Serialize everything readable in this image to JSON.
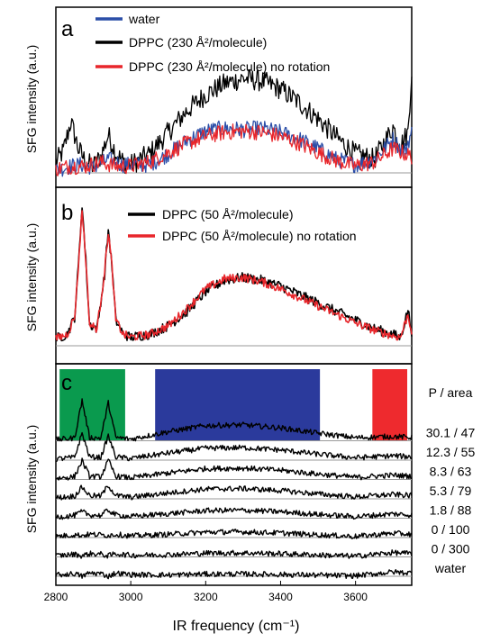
{
  "figure": {
    "ylabel": "SFG intensity (a.u.)",
    "xlabel": "IR frequency (cm⁻¹)",
    "colors": {
      "black": "#000000",
      "red": "#e8262b",
      "blue": "#2b4ea8",
      "green": "#0a9a4e",
      "band_blue": "#2b3a9c",
      "band_red": "#ee2a2e",
      "baseline": "#9a9a9a"
    }
  },
  "chart_data": [
    {
      "type": "line",
      "panel_label": "a",
      "xlim": [
        2800,
        3750
      ],
      "series": [
        {
          "name": "water",
          "color": "blue",
          "x": [
            2800,
            2840,
            2870,
            2900,
            2940,
            2980,
            3050,
            3100,
            3150,
            3200,
            3250,
            3300,
            3350,
            3400,
            3450,
            3500,
            3550,
            3600,
            3650,
            3700,
            3730,
            3750
          ],
          "y": [
            0.02,
            0.05,
            0.06,
            0.04,
            0.1,
            0.06,
            0.06,
            0.14,
            0.24,
            0.31,
            0.33,
            0.32,
            0.33,
            0.3,
            0.25,
            0.18,
            0.1,
            0.06,
            0.1,
            0.25,
            0.15,
            0.3
          ]
        },
        {
          "name": "DPPC (230 Å²/molecule)",
          "color": "black",
          "x": [
            2800,
            2820,
            2840,
            2860,
            2880,
            2900,
            2920,
            2940,
            2960,
            2980,
            3000,
            3050,
            3100,
            3150,
            3200,
            3250,
            3300,
            3350,
            3400,
            3450,
            3500,
            3550,
            3600,
            3650,
            3680,
            3700,
            3720,
            3740,
            3750
          ],
          "y": [
            0.08,
            0.16,
            0.38,
            0.18,
            0.08,
            0.05,
            0.12,
            0.28,
            0.15,
            0.08,
            0.06,
            0.14,
            0.3,
            0.46,
            0.58,
            0.66,
            0.7,
            0.68,
            0.62,
            0.52,
            0.4,
            0.26,
            0.14,
            0.1,
            0.24,
            0.34,
            0.2,
            0.3,
            0.76
          ]
        },
        {
          "name": "DPPC (230 Å²/molecule) no rotation",
          "color": "red",
          "x": [
            2800,
            2840,
            2880,
            2920,
            2960,
            3000,
            3050,
            3100,
            3150,
            3200,
            3250,
            3300,
            3350,
            3400,
            3450,
            3500,
            3550,
            3600,
            3650,
            3700,
            3750
          ],
          "y": [
            0.03,
            0.05,
            0.05,
            0.08,
            0.05,
            0.05,
            0.08,
            0.15,
            0.22,
            0.27,
            0.3,
            0.31,
            0.3,
            0.27,
            0.22,
            0.15,
            0.09,
            0.05,
            0.08,
            0.18,
            0.12
          ]
        }
      ]
    },
    {
      "type": "line",
      "panel_label": "b",
      "xlim": [
        2800,
        3750
      ],
      "series": [
        {
          "name": "DPPC (50 Å²/molecule)",
          "color": "black",
          "x": [
            2800,
            2830,
            2850,
            2860,
            2870,
            2880,
            2890,
            2910,
            2930,
            2940,
            2950,
            2960,
            2980,
            3000,
            3050,
            3100,
            3150,
            3200,
            3250,
            3300,
            3350,
            3400,
            3450,
            3500,
            3550,
            3600,
            3650,
            3700,
            3720,
            3740,
            3750
          ],
          "y": [
            0.05,
            0.08,
            0.2,
            0.55,
            1.0,
            0.6,
            0.15,
            0.12,
            0.5,
            0.82,
            0.55,
            0.18,
            0.08,
            0.06,
            0.08,
            0.14,
            0.24,
            0.38,
            0.46,
            0.48,
            0.46,
            0.42,
            0.36,
            0.3,
            0.24,
            0.18,
            0.12,
            0.08,
            0.06,
            0.25,
            0.1
          ]
        },
        {
          "name": "DPPC (50 Å²/molecule) no rotation",
          "color": "red",
          "x": [
            2800,
            2830,
            2850,
            2860,
            2870,
            2880,
            2890,
            2910,
            2930,
            2940,
            2950,
            2960,
            2980,
            3000,
            3050,
            3100,
            3150,
            3200,
            3250,
            3300,
            3350,
            3400,
            3450,
            3500,
            3550,
            3600,
            3650,
            3700,
            3720,
            3740,
            3750
          ],
          "y": [
            0.05,
            0.08,
            0.2,
            0.55,
            0.96,
            0.6,
            0.15,
            0.12,
            0.52,
            0.8,
            0.55,
            0.18,
            0.08,
            0.06,
            0.08,
            0.14,
            0.26,
            0.4,
            0.47,
            0.48,
            0.45,
            0.4,
            0.34,
            0.28,
            0.22,
            0.16,
            0.11,
            0.07,
            0.06,
            0.22,
            0.1
          ]
        }
      ]
    },
    {
      "type": "line",
      "panel_label": "c",
      "xlim": [
        2800,
        3750
      ],
      "xticks": [
        2800,
        3000,
        3200,
        3400,
        3600
      ],
      "column_header": "P / area",
      "bands": [
        {
          "from": 2810,
          "to": 2985,
          "color": "green"
        },
        {
          "from": 3065,
          "to": 3505,
          "color": "band_blue"
        },
        {
          "from": 3645,
          "to": 3738,
          "color": "band_red"
        }
      ],
      "series": [
        {
          "name": "30.1 / 47",
          "offset": 7,
          "peaks": [
            0.75,
            0.7,
            0.28
          ]
        },
        {
          "name": "12.3 / 55",
          "offset": 6,
          "peaks": [
            0.5,
            0.45,
            0.22
          ]
        },
        {
          "name": "8.3 / 63",
          "offset": 5,
          "peaks": [
            0.35,
            0.35,
            0.2
          ]
        },
        {
          "name": "5.3 / 79",
          "offset": 4,
          "peaks": [
            0.22,
            0.25,
            0.18
          ]
        },
        {
          "name": "1.8 / 88",
          "offset": 3,
          "peaks": [
            0.12,
            0.15,
            0.14
          ]
        },
        {
          "name": "0 / 100",
          "offset": 2,
          "peaks": [
            0.04,
            0.04,
            0.1
          ]
        },
        {
          "name": "0 / 300",
          "offset": 1,
          "peaks": [
            0.02,
            0.02,
            0.07
          ]
        },
        {
          "name": "water",
          "offset": 0,
          "peaks": [
            0.0,
            0.0,
            0.04
          ]
        }
      ]
    }
  ]
}
